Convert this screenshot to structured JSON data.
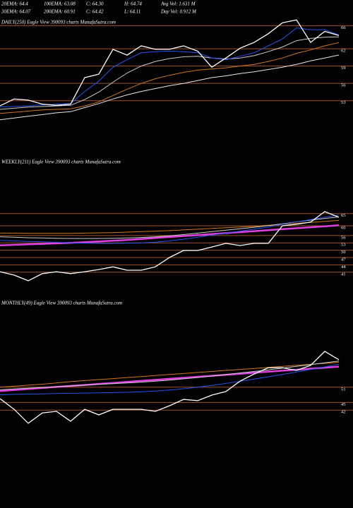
{
  "header": {
    "rows": [
      [
        "20EMA: 64.4",
        "100EMA: 63.08",
        "C: 64.30",
        "H: 64.74",
        "Avg Vol: 1.631  M"
      ],
      [
        "30EMA: 64.07",
        "200EMA: 60.91",
        "C: 64.42",
        "L: 64.11",
        "Day Vol: 0.912  M"
      ]
    ]
  },
  "chart_data": [
    {
      "type": "line",
      "title": "DAILY(250) Eagle  View  390093 charts MunafaSutra.com",
      "ylim": [
        46,
        68
      ],
      "yticks": [
        66,
        62,
        59,
        56,
        53
      ],
      "grid": true,
      "series": [
        {
          "color": "#e8e8e8",
          "values": [
            49.7,
            50.0,
            50.3,
            50.6,
            50.9,
            51.1,
            51.8,
            52.5,
            53.3,
            54.0,
            54.6,
            55.1,
            55.6,
            56.0,
            56.5,
            57.0,
            57.3,
            57.7,
            58.0,
            58.4,
            58.8,
            59.3,
            59.9,
            60.4,
            60.91
          ]
        },
        {
          "color": "#d07818",
          "values": [
            50.8,
            51.0,
            51.2,
            51.4,
            51.5,
            51.6,
            52.1,
            52.8,
            53.9,
            55.0,
            56.0,
            56.8,
            57.4,
            57.9,
            58.3,
            58.5,
            58.7,
            59.0,
            59.3,
            59.8,
            60.4,
            61.2,
            61.8,
            62.5,
            63.08
          ]
        },
        {
          "color": "#cccccc",
          "values": [
            51.5,
            51.7,
            51.9,
            52.0,
            52.1,
            52.2,
            53.2,
            54.5,
            56.2,
            57.8,
            59.0,
            59.8,
            60.3,
            60.6,
            60.7,
            60.4,
            60.2,
            60.4,
            60.8,
            61.5,
            62.3,
            63.4,
            63.8,
            64.0,
            64.07
          ]
        },
        {
          "color": "#2255ee",
          "values": [
            51.9,
            52.0,
            52.1,
            52.3,
            52.4,
            52.5,
            54.6,
            56.4,
            58.8,
            60.1,
            61.3,
            61.5,
            61.6,
            61.5,
            61.3,
            60.4,
            60.1,
            60.7,
            61.3,
            62.5,
            63.7,
            65.6,
            65.3,
            65.3,
            64.4
          ]
        },
        {
          "color": "#ffffff",
          "values": [
            52.1,
            53.3,
            53.1,
            52.4,
            52.2,
            52.4,
            57.0,
            57.6,
            61.9,
            60.9,
            62.5,
            61.9,
            61.9,
            62.5,
            61.6,
            58.8,
            60.4,
            62.1,
            63.1,
            64.6,
            66.5,
            67.0,
            63.1,
            65.0,
            64.3
          ]
        }
      ]
    },
    {
      "type": "line",
      "title": "WEEKLY(211) Eagle  View  390093 charts MunafaSutra.com",
      "ylim": [
        34,
        86
      ],
      "yticks": [
        65,
        60,
        56,
        53,
        50,
        47,
        44,
        41
      ],
      "grid": true,
      "series": [
        {
          "color": "#e040e0",
          "values": [
            52.0,
            52.2,
            52.4,
            52.6,
            52.8,
            53.0,
            53.3,
            53.6,
            53.9,
            54.2,
            54.6,
            55.0,
            55.4,
            55.8,
            56.2,
            56.6,
            57.0,
            57.4,
            57.8,
            58.2,
            58.6,
            59.0,
            59.4,
            59.8,
            60.2
          ]
        },
        {
          "color": "#d07818",
          "values": [
            57.0,
            57.0,
            56.9,
            56.9,
            56.9,
            56.9,
            57.0,
            57.1,
            57.2,
            57.4,
            57.6,
            57.8,
            58.0,
            58.3,
            58.6,
            58.9,
            59.2,
            59.5,
            59.8,
            60.2,
            60.6,
            61.0,
            61.4,
            61.8,
            62.2
          ]
        },
        {
          "color": "#cccccc",
          "values": [
            55.5,
            55.3,
            55.1,
            55.0,
            54.9,
            54.8,
            54.8,
            54.8,
            54.9,
            55.0,
            55.2,
            55.5,
            55.9,
            56.4,
            57.0,
            57.6,
            58.2,
            58.8,
            59.4,
            60.1,
            60.8,
            61.6,
            62.3,
            63.0,
            63.6
          ]
        },
        {
          "color": "#2255ee",
          "values": [
            54.0,
            53.8,
            53.6,
            53.4,
            53.2,
            53.0,
            52.9,
            52.8,
            52.8,
            52.9,
            53.0,
            53.3,
            53.8,
            54.5,
            55.3,
            56.2,
            57.0,
            57.8,
            58.6,
            59.5,
            60.6,
            61.6,
            62.5,
            63.5,
            64.4
          ]
        },
        {
          "color": "#ffffff",
          "values": [
            41.2,
            39.8,
            37.5,
            40.4,
            41.2,
            40.4,
            41.2,
            42.1,
            43.2,
            41.8,
            41.8,
            43.2,
            47.0,
            49.9,
            49.9,
            51.3,
            52.8,
            51.9,
            52.8,
            52.8,
            60.0,
            60.6,
            61.5,
            65.8,
            63.5
          ]
        }
      ]
    },
    {
      "type": "line",
      "title": "MONTHLY(49) Eagle  View  390093 charts MunafaSutra.com",
      "ylim": [
        34,
        84
      ],
      "yticks": [
        51,
        45,
        42
      ],
      "grid": true,
      "series": [
        {
          "color": "#e040e0",
          "values": [
            49.5,
            49.9,
            50.3,
            50.7,
            51.1,
            51.5,
            51.9,
            52.3,
            52.7,
            53.1,
            53.5,
            53.9,
            54.3,
            54.7,
            55.1,
            55.5,
            55.9,
            56.3,
            56.7,
            57.1,
            57.5,
            57.9,
            58.3,
            58.7,
            59.1
          ]
        },
        {
          "color": "#d07818",
          "values": [
            51.0,
            51.4,
            51.8,
            52.2,
            52.7,
            53.2,
            53.6,
            54.0,
            54.4,
            54.8,
            55.2,
            55.6,
            56.0,
            56.4,
            56.8,
            57.2,
            57.6,
            58.0,
            58.4,
            58.8,
            59.2,
            59.6,
            60.0,
            60.4,
            60.8
          ]
        },
        {
          "color": "#cccccc",
          "values": [
            50.0,
            50.3,
            50.6,
            50.9,
            51.2,
            51.5,
            51.8,
            52.1,
            52.4,
            52.7,
            53.0,
            53.4,
            53.8,
            54.3,
            54.8,
            55.4,
            56.0,
            56.6,
            57.2,
            57.8,
            58.5,
            59.2,
            59.9,
            60.6,
            61.3
          ]
        },
        {
          "color": "#2255ee",
          "values": [
            48.0,
            48.2,
            48.3,
            48.4,
            48.5,
            48.6,
            48.7,
            48.8,
            48.9,
            49.0,
            49.2,
            49.5,
            49.9,
            50.4,
            51.0,
            51.7,
            52.5,
            53.3,
            54.2,
            55.1,
            56.0,
            57.0,
            58.0,
            59.0,
            60.0
          ]
        },
        {
          "color": "#ffffff",
          "values": [
            46.5,
            42.3,
            36.8,
            40.9,
            41.5,
            37.6,
            42.3,
            40.1,
            42.3,
            42.3,
            42.3,
            41.5,
            43.7,
            46.2,
            45.7,
            47.9,
            49.3,
            53.4,
            56.2,
            58.7,
            58.7,
            57.6,
            59.6,
            65.1,
            61.8
          ]
        }
      ]
    }
  ]
}
